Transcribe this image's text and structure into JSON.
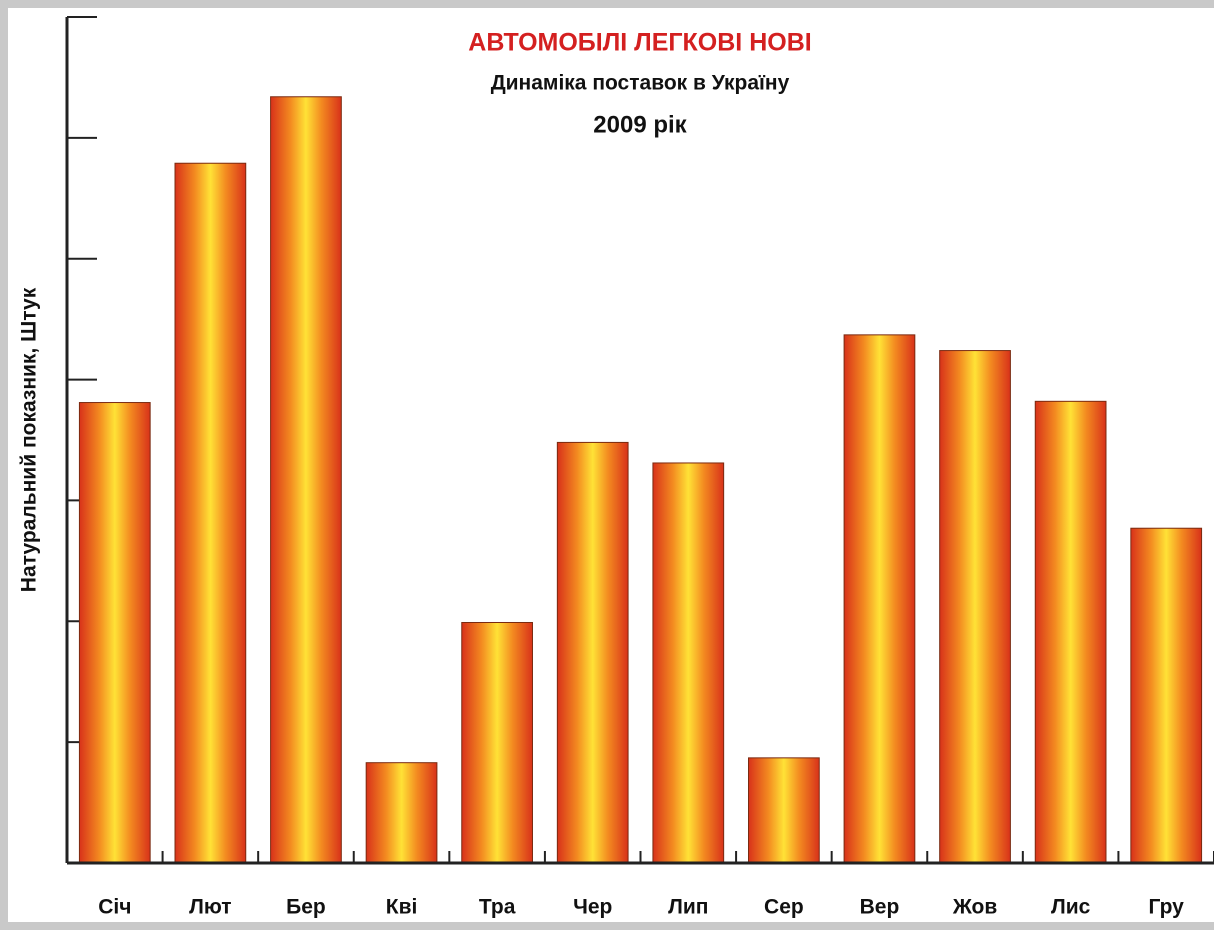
{
  "chart_data": {
    "type": "bar",
    "title": "АВТОМОБІЛІ ЛЕГКОВІ НОВІ",
    "subtitle": "Динаміка поставок в Україну",
    "period": "2009 рік",
    "y_label": "Натуральний показник, Штук",
    "categories": [
      "Січ",
      "Лют",
      "Бер",
      "Кві",
      "Тра",
      "Чер",
      "Лип",
      "Сер",
      "Вер",
      "Жов",
      "Лис",
      "Гру"
    ],
    "values": [
      3.81,
      5.79,
      6.34,
      0.83,
      1.99,
      3.48,
      3.31,
      0.87,
      4.37,
      4.24,
      3.82,
      2.77
    ],
    "color": "#f59020",
    "ylim": [
      0,
      7
    ],
    "yticks": [
      0,
      1,
      2,
      3,
      4,
      5,
      6,
      7
    ],
    "grid": false
  }
}
